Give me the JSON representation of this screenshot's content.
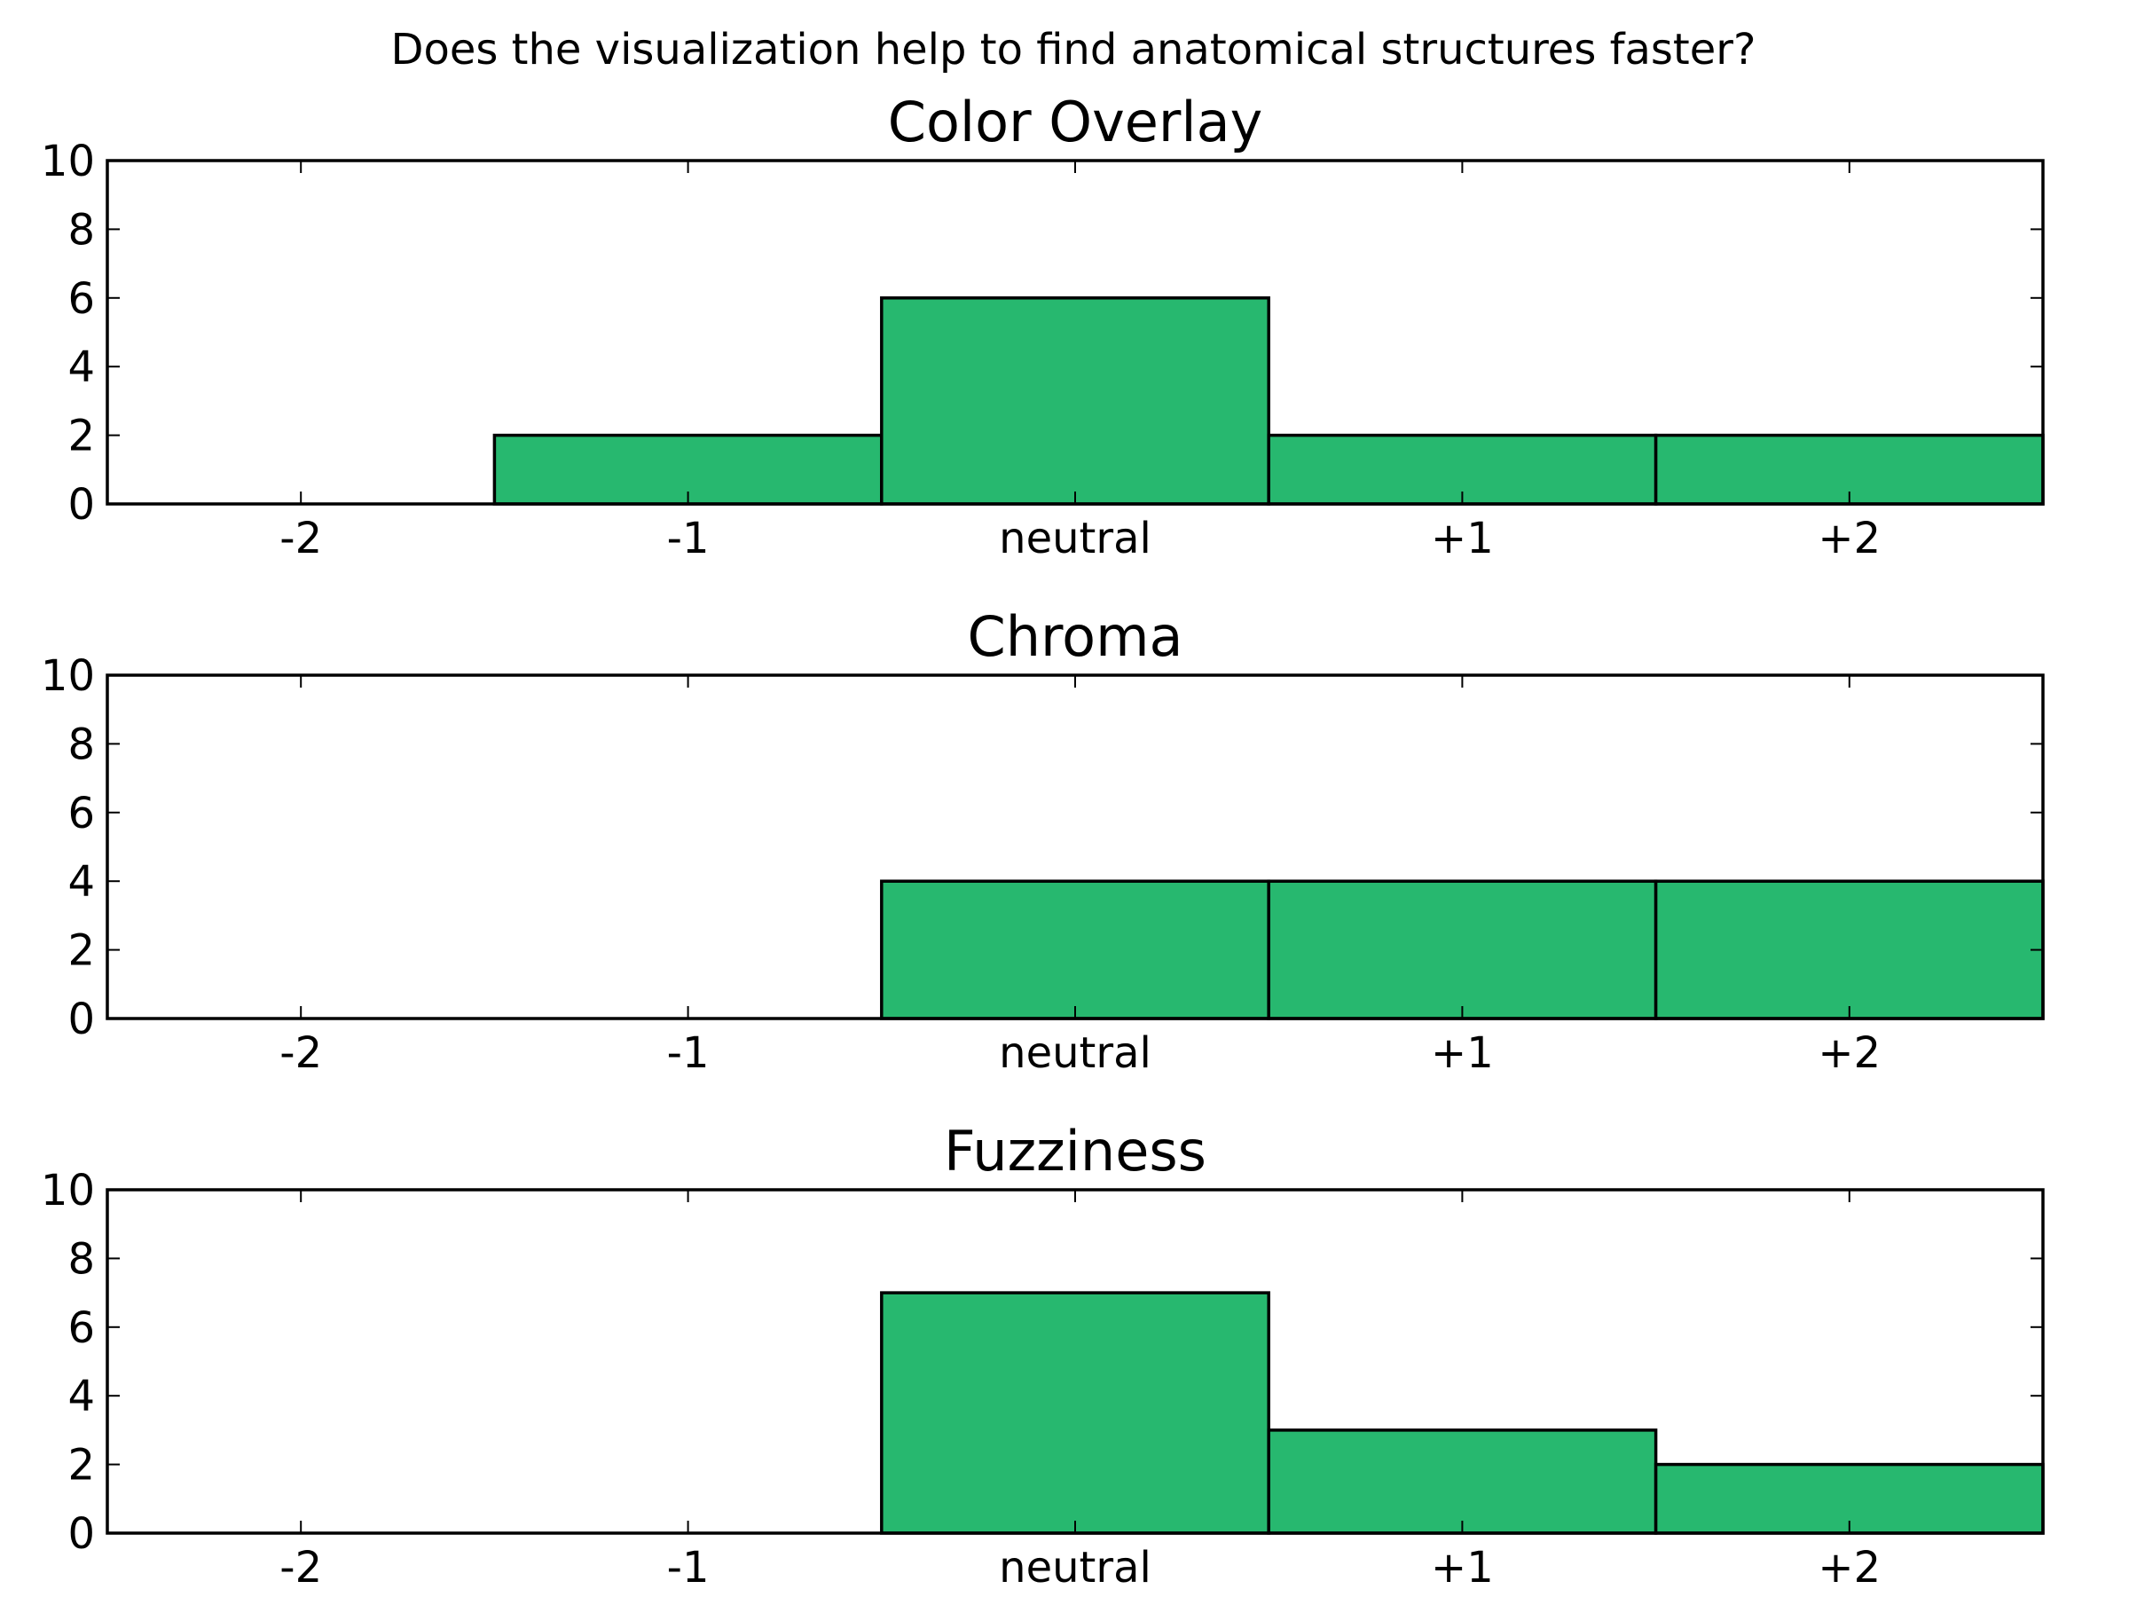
{
  "figure": {
    "suptitle": "Does the visualization help to find anatomical structures faster?",
    "bar_color": "#27b86f",
    "edge_color": "#000000"
  },
  "chart_data": [
    {
      "type": "bar",
      "title": "Color Overlay",
      "categories": [
        "-2",
        "-1",
        "neutral",
        "+1",
        "+2"
      ],
      "values": [
        0,
        2,
        6,
        2,
        2
      ],
      "ylim": [
        0,
        10
      ],
      "yticks": [
        "0",
        "2",
        "4",
        "6",
        "8",
        "10"
      ],
      "xlabel": "",
      "ylabel": "",
      "grid": false
    },
    {
      "type": "bar",
      "title": "Chroma",
      "categories": [
        "-2",
        "-1",
        "neutral",
        "+1",
        "+2"
      ],
      "values": [
        0,
        0,
        4,
        4,
        4
      ],
      "ylim": [
        0,
        10
      ],
      "yticks": [
        "0",
        "2",
        "4",
        "6",
        "8",
        "10"
      ],
      "xlabel": "",
      "ylabel": "",
      "grid": false
    },
    {
      "type": "bar",
      "title": "Fuzziness",
      "categories": [
        "-2",
        "-1",
        "neutral",
        "+1",
        "+2"
      ],
      "values": [
        0,
        0,
        7,
        3,
        2
      ],
      "ylim": [
        0,
        10
      ],
      "yticks": [
        "0",
        "2",
        "4",
        "6",
        "8",
        "10"
      ],
      "xlabel": "",
      "ylabel": "",
      "grid": false
    }
  ]
}
